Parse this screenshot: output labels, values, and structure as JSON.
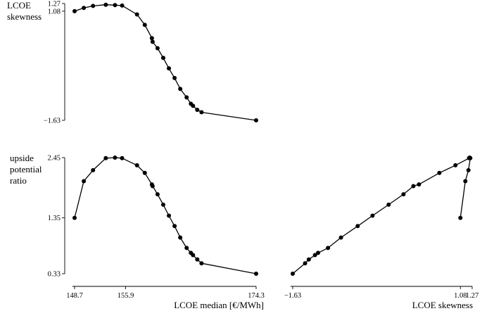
{
  "chart_data": [
    {
      "type": "line",
      "ylabel_lines": [
        "LCOE",
        "skewness"
      ],
      "xlabel": "",
      "x_range": [
        148.7,
        174.3
      ],
      "y_range": [
        -1.63,
        1.27
      ],
      "yticks": [
        {
          "value": 1.27,
          "label": "1.27"
        },
        {
          "value": 1.08,
          "label": "1.08"
        },
        {
          "value": -1.63,
          "label": "−1.63"
        }
      ],
      "x": [
        148.7,
        150.0,
        151.3,
        153.1,
        154.4,
        155.4,
        157.5,
        158.6,
        159.6,
        159.7,
        160.4,
        161.2,
        162.0,
        162.8,
        163.6,
        164.5,
        165.1,
        165.4,
        166.0,
        166.6,
        174.3
      ],
      "y": [
        1.08,
        1.16,
        1.21,
        1.24,
        1.23,
        1.22,
        1.0,
        0.74,
        0.41,
        0.32,
        0.16,
        -0.08,
        -0.34,
        -0.58,
        -0.85,
        -1.06,
        -1.22,
        -1.27,
        -1.37,
        -1.43,
        -1.63
      ]
    },
    {
      "type": "line",
      "ylabel_lines": [
        "upside",
        "potential",
        "ratio"
      ],
      "xlabel": "LCOE median [€/MWh]",
      "x_range": [
        148.7,
        174.3
      ],
      "y_range": [
        0.33,
        2.45
      ],
      "yticks": [
        {
          "value": 2.45,
          "label": "2.45"
        },
        {
          "value": 1.35,
          "label": "1.35"
        },
        {
          "value": 0.33,
          "label": "0.33"
        }
      ],
      "xticks": [
        {
          "value": 148.7,
          "label": "148.7"
        },
        {
          "value": 155.9,
          "label": "155.9"
        },
        {
          "value": 174.3,
          "label": "174.3"
        }
      ],
      "x": [
        148.7,
        150.0,
        151.3,
        153.1,
        154.4,
        155.4,
        157.5,
        158.6,
        159.6,
        159.7,
        160.4,
        161.2,
        162.0,
        162.8,
        163.6,
        164.5,
        165.1,
        165.4,
        166.0,
        166.6,
        174.3
      ],
      "y": [
        1.35,
        2.02,
        2.22,
        2.44,
        2.45,
        2.44,
        2.31,
        2.17,
        1.96,
        1.93,
        1.78,
        1.59,
        1.39,
        1.2,
        0.99,
        0.8,
        0.71,
        0.67,
        0.59,
        0.52,
        0.33
      ]
    },
    {
      "type": "line",
      "xlabel": "LCOE skewness",
      "x_range": [
        -1.63,
        1.27
      ],
      "y_range": [
        0.33,
        2.45
      ],
      "xticks": [
        {
          "value": -1.63,
          "label": "−1.63"
        },
        {
          "value": 1.08,
          "label": "1.08"
        },
        {
          "value": 1.27,
          "label": "1.27"
        }
      ],
      "x": [
        1.08,
        1.16,
        1.21,
        1.24,
        1.23,
        1.22,
        1.0,
        0.74,
        0.41,
        0.32,
        0.16,
        -0.08,
        -0.34,
        -0.58,
        -0.85,
        -1.06,
        -1.22,
        -1.27,
        -1.37,
        -1.43,
        -1.63
      ],
      "y": [
        1.35,
        2.02,
        2.22,
        2.44,
        2.45,
        2.44,
        2.31,
        2.17,
        1.96,
        1.93,
        1.78,
        1.59,
        1.39,
        1.2,
        0.99,
        0.8,
        0.71,
        0.67,
        0.59,
        0.52,
        0.33
      ]
    }
  ]
}
